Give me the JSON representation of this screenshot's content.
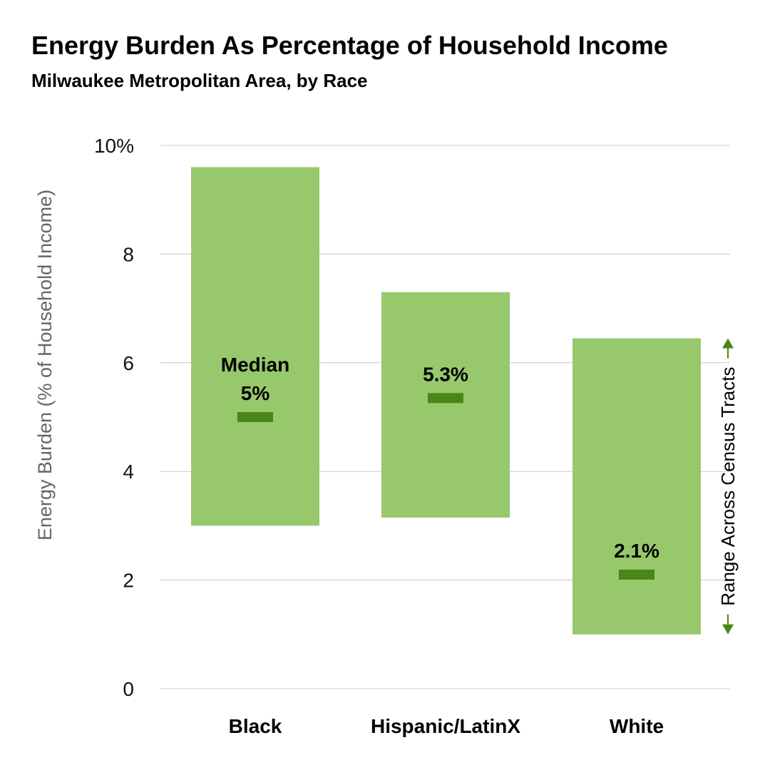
{
  "chart_data": {
    "type": "bar",
    "title": "Energy Burden As Percentage of Household Income",
    "subtitle": "Milwaukee Metropolitan Area, by Race",
    "ylabel": "Energy Burden (% of Household Income)",
    "ylim": [
      0,
      10
    ],
    "yticks": [
      0,
      2,
      4,
      6,
      8,
      10
    ],
    "ytick_labels": [
      "0",
      "2",
      "4",
      "6",
      "8",
      "10%"
    ],
    "grid": true,
    "categories": [
      "Black",
      "Hispanic/LatinX",
      "White"
    ],
    "range_low": [
      3.0,
      3.15,
      1.0
    ],
    "range_high": [
      9.6,
      7.3,
      6.45
    ],
    "median": [
      5.0,
      5.35,
      2.1
    ],
    "median_labels": [
      "5%",
      "5.3%",
      "2.1%"
    ],
    "median_prefix": "Median",
    "range_annotation": "Range Across Census Tracts",
    "colors": {
      "bar": "#98c86c",
      "median": "#4a8518",
      "arrow": "#4a8518",
      "grid": "#c8c8c8"
    }
  }
}
